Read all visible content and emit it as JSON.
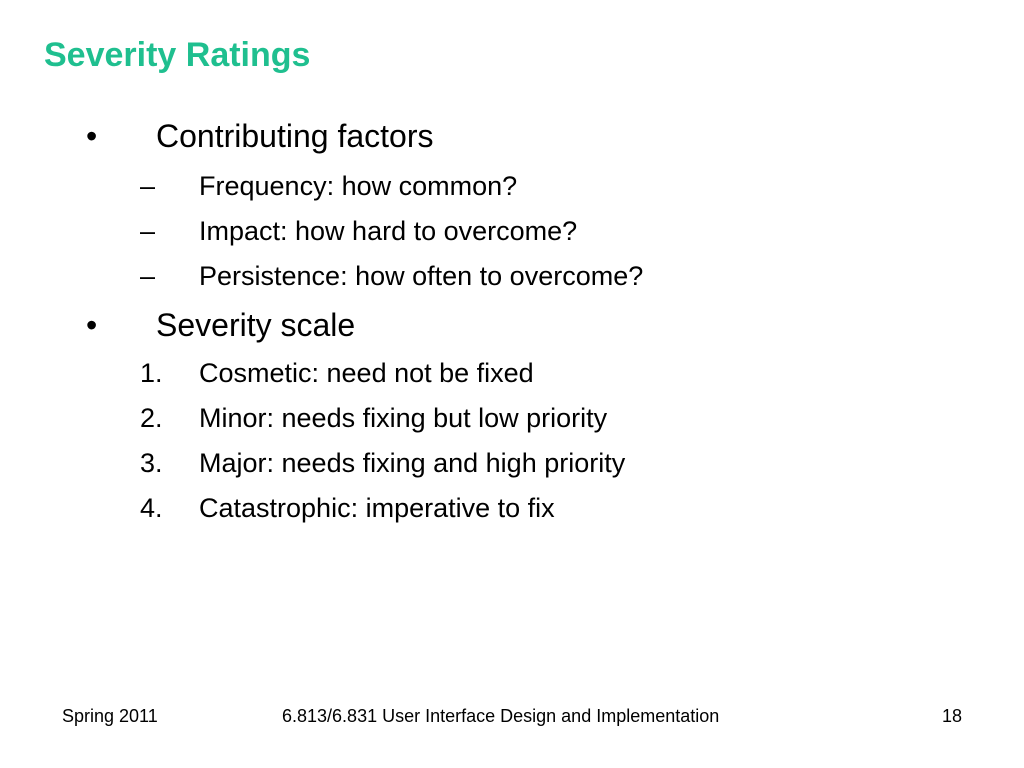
{
  "slide": {
    "title": "Severity Ratings",
    "sections": [
      {
        "marker": "•",
        "label": "Contributing factors",
        "items": [
          {
            "marker": "–",
            "text": "Frequency: how common?"
          },
          {
            "marker": "–",
            "text": "Impact: how hard to overcome?"
          },
          {
            "marker": "–",
            "text": "Persistence: how often to overcome?"
          }
        ]
      },
      {
        "marker": "•",
        "label": "Severity scale",
        "items": [
          {
            "marker": "1.",
            "text": "Cosmetic: need not be fixed"
          },
          {
            "marker": "2.",
            "text": "Minor: needs fixing but low priority"
          },
          {
            "marker": "3.",
            "text": "Major: needs fixing and high priority"
          },
          {
            "marker": "4.",
            "text": "Catastrophic: imperative to fix"
          }
        ]
      }
    ]
  },
  "footer": {
    "left": "Spring 2011",
    "center": "6.813/6.831 User Interface Design and Implementation",
    "page_number": "18"
  },
  "colors": {
    "title": "#1fbf8f",
    "text": "#000000",
    "background": "#ffffff"
  }
}
